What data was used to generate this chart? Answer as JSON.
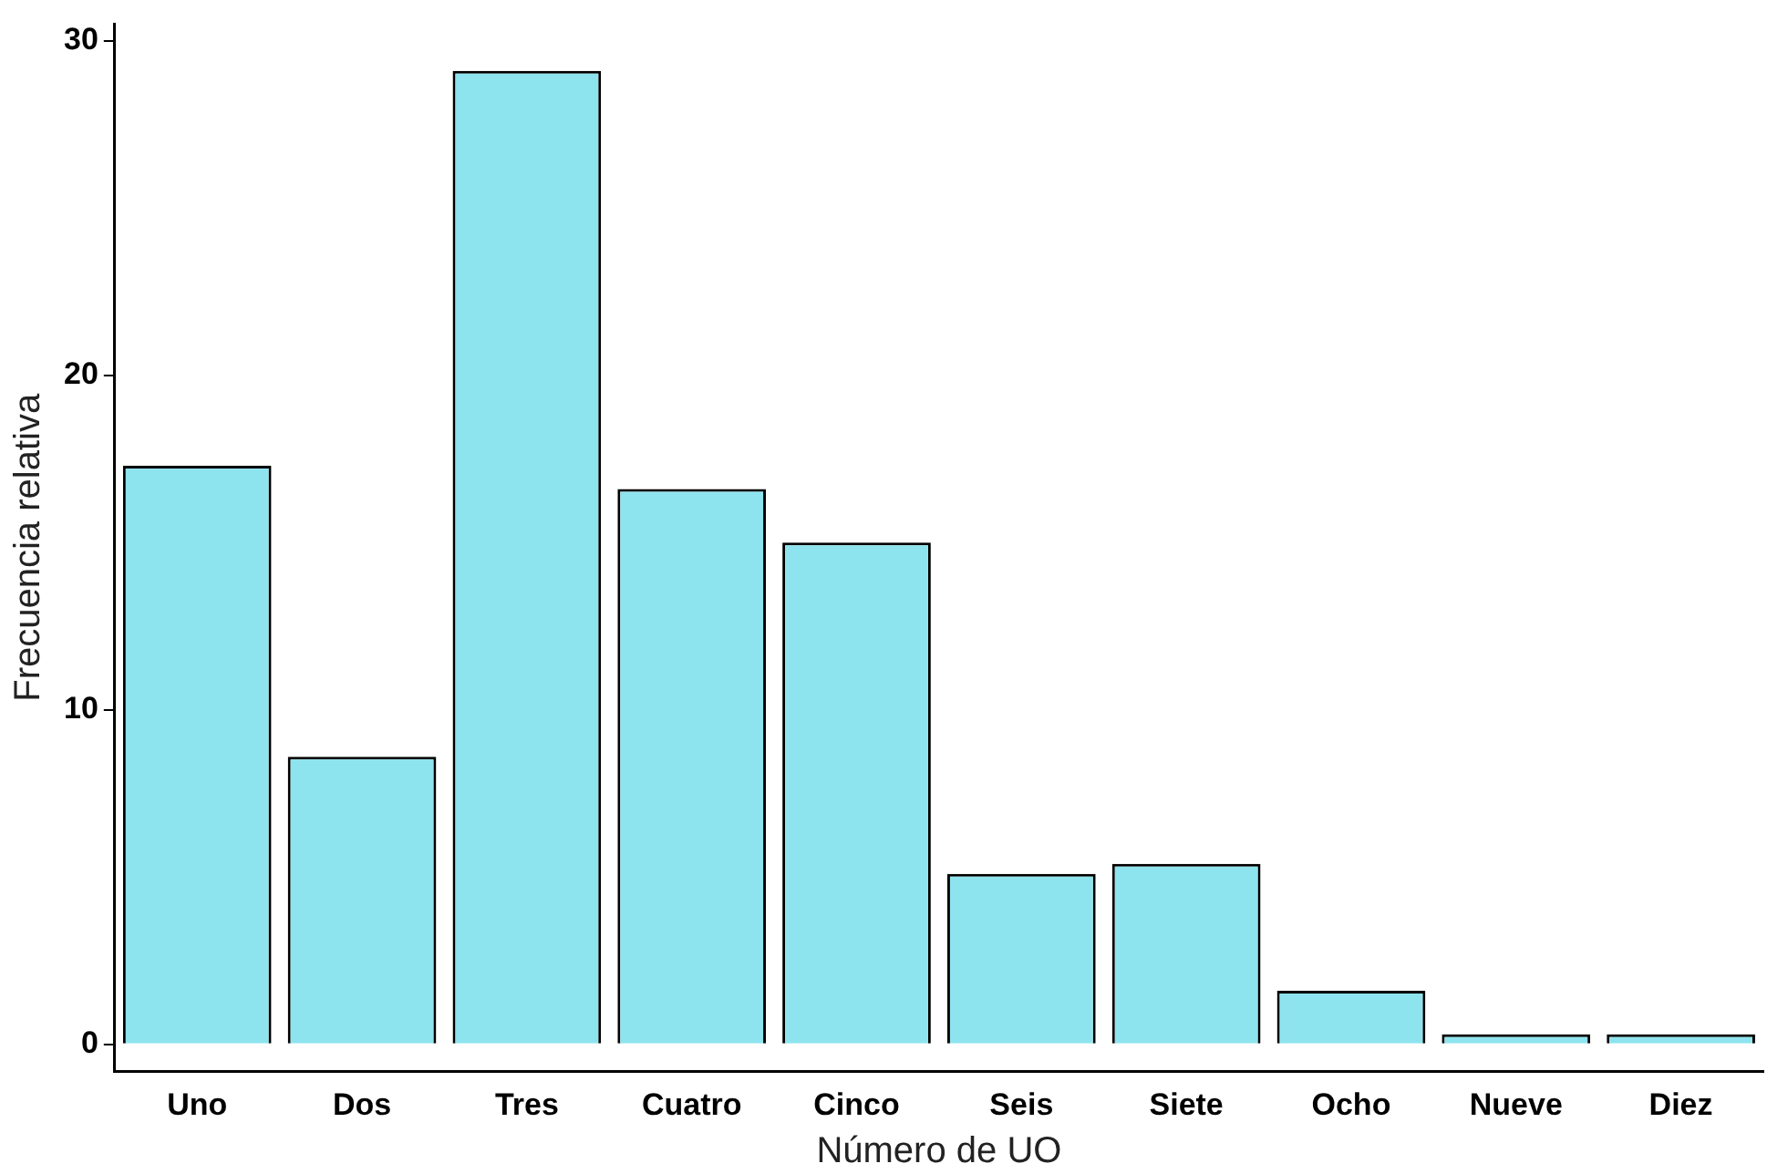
{
  "chart_data": {
    "type": "bar",
    "xlabel": "Número de UO",
    "ylabel": "Frecuencia relativa",
    "categories": [
      "Uno",
      "Dos",
      "Tres",
      "Cuatro",
      "Cinco",
      "Seis",
      "Siete",
      "Ocho",
      "Nueve",
      "Diez"
    ],
    "values": [
      17.3,
      8.6,
      29.1,
      16.6,
      15.0,
      5.1,
      5.4,
      1.6,
      0.3,
      0.3
    ],
    "color": "#8ee4ee",
    "ylim": [
      -0.8,
      30.5
    ],
    "yticks": [
      0,
      10,
      20,
      30
    ],
    "grid": false,
    "legend": false
  }
}
